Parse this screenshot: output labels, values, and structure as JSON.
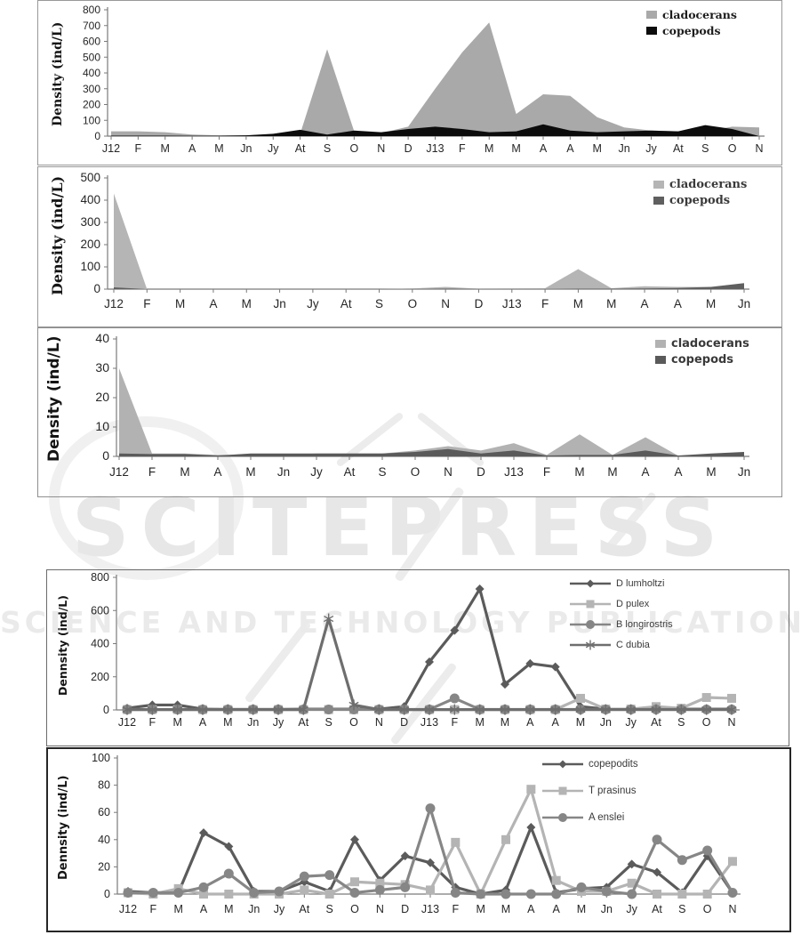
{
  "watermark": {
    "brand": "SCITEPRESS",
    "tagline": "SCIENCE AND TECHNOLOGY PUBLICATIONS"
  },
  "chart_data": [
    {
      "id": "c1",
      "type": "area",
      "title": "",
      "ylabel": "Density (ind/L)",
      "ylim": [
        0,
        800
      ],
      "yticks": [
        0,
        100,
        200,
        300,
        400,
        500,
        600,
        700,
        800
      ],
      "legend_position": "top-right",
      "grid": false,
      "categories": [
        "J12",
        "F",
        "M",
        "A",
        "M",
        "Jn",
        "Jy",
        "At",
        "S",
        "O",
        "N",
        "D",
        "J13",
        "F",
        "M",
        "M",
        "A",
        "A",
        "M",
        "Jn",
        "Jy",
        "At",
        "S",
        "O",
        "N"
      ],
      "series": [
        {
          "name": "cladocerans",
          "color": "#a9a9a9",
          "values": [
            30,
            30,
            25,
            10,
            5,
            5,
            10,
            15,
            550,
            30,
            20,
            60,
            300,
            530,
            720,
            140,
            265,
            255,
            120,
            55,
            35,
            30,
            30,
            60,
            55
          ]
        },
        {
          "name": "copepods",
          "color": "#0c0c0c",
          "values": [
            3,
            3,
            3,
            2,
            2,
            5,
            15,
            40,
            10,
            35,
            25,
            45,
            60,
            45,
            25,
            30,
            75,
            35,
            25,
            30,
            35,
            30,
            70,
            45,
            0
          ]
        }
      ]
    },
    {
      "id": "c2",
      "type": "area",
      "title": "",
      "ylabel": "Density (ind/L)",
      "ylim": [
        0,
        500
      ],
      "yticks": [
        0,
        100,
        200,
        300,
        400,
        500
      ],
      "legend_position": "top-right",
      "grid": false,
      "categories": [
        "J12",
        "F",
        "M",
        "A",
        "M",
        "Jn",
        "Jy",
        "At",
        "S",
        "O",
        "N",
        "D",
        "J13",
        "F",
        "M",
        "M",
        "A",
        "A",
        "M",
        "Jn"
      ],
      "series": [
        {
          "name": "cladocerans",
          "color": "#b5b5b5",
          "values": [
            430,
            0,
            0,
            0,
            0,
            0,
            0,
            0,
            0,
            3,
            10,
            2,
            3,
            4,
            90,
            4,
            13,
            10,
            10,
            12
          ]
        },
        {
          "name": "copepods",
          "color": "#5f5f5f",
          "values": [
            8,
            0,
            0,
            0,
            0,
            0,
            0,
            0,
            0,
            1,
            2,
            1,
            1,
            1,
            2,
            2,
            3,
            5,
            10,
            27
          ]
        }
      ]
    },
    {
      "id": "c3",
      "type": "area",
      "title": "",
      "ylabel": "Density (ind/L)",
      "ylim": [
        0,
        40
      ],
      "yticks": [
        0,
        10,
        20,
        30,
        40
      ],
      "legend_position": "top-right",
      "grid": false,
      "categories": [
        "J12",
        "F",
        "M",
        "A",
        "M",
        "Jn",
        "Jy",
        "At",
        "S",
        "O",
        "N",
        "D",
        "J13",
        "F",
        "M",
        "M",
        "A",
        "A",
        "M",
        "Jn"
      ],
      "series": [
        {
          "name": "cladocerans",
          "color": "#b2b2b2",
          "values": [
            30,
            1,
            1,
            0.5,
            0.5,
            0.5,
            1,
            1,
            1,
            2,
            3.5,
            2,
            4.5,
            0.5,
            7.5,
            0.5,
            6.5,
            0.2,
            0.5,
            0.5
          ]
        },
        {
          "name": "copepods",
          "color": "#5a5a5a",
          "values": [
            1,
            0.8,
            0.8,
            0.3,
            1,
            1,
            1,
            1,
            1,
            1.5,
            2.5,
            1,
            2,
            0.3,
            0.5,
            0.5,
            2,
            0.3,
            1,
            1.5
          ]
        }
      ]
    },
    {
      "id": "c4",
      "type": "line",
      "title": "",
      "ylabel": "Dennsity (ind/L)",
      "ylim": [
        0,
        800
      ],
      "yticks": [
        0,
        200,
        400,
        600,
        800
      ],
      "legend_position": "top-right",
      "grid": false,
      "categories": [
        "J12",
        "F",
        "M",
        "A",
        "M",
        "Jn",
        "Jy",
        "At",
        "S",
        "O",
        "N",
        "D",
        "J13",
        "F",
        "M",
        "M",
        "A",
        "A",
        "M",
        "Jn",
        "Jy",
        "At",
        "S",
        "O",
        "N"
      ],
      "series": [
        {
          "name": "D lumholtzi",
          "italic": true,
          "marker": "diamond",
          "color": "#5b5b5b",
          "values": [
            10,
            30,
            30,
            5,
            3,
            3,
            3,
            5,
            5,
            5,
            5,
            20,
            290,
            480,
            730,
            155,
            280,
            260,
            20,
            5,
            5,
            5,
            5,
            5,
            5
          ]
        },
        {
          "name": "D pulex",
          "italic": true,
          "marker": "square",
          "color": "#b4b4b4",
          "values": [
            2,
            2,
            2,
            2,
            2,
            2,
            2,
            2,
            2,
            2,
            2,
            2,
            2,
            2,
            2,
            2,
            2,
            2,
            70,
            5,
            5,
            20,
            10,
            75,
            70
          ]
        },
        {
          "name": "B longirostris",
          "italic": true,
          "marker": "circle",
          "color": "#868686",
          "values": [
            3,
            3,
            3,
            3,
            3,
            3,
            3,
            3,
            3,
            3,
            3,
            3,
            3,
            70,
            3,
            3,
            3,
            3,
            3,
            3,
            3,
            3,
            3,
            3,
            3
          ]
        },
        {
          "name": "C dubia",
          "italic": true,
          "marker": "asterisk",
          "color": "#6e6e6e",
          "values": [
            2,
            2,
            2,
            2,
            2,
            2,
            2,
            2,
            550,
            30,
            2,
            2,
            2,
            2,
            2,
            2,
            2,
            2,
            2,
            2,
            2,
            2,
            2,
            2,
            2
          ]
        }
      ]
    },
    {
      "id": "c5",
      "type": "line",
      "title": "",
      "ylabel": "Dennsity (ind/L)",
      "ylim": [
        0,
        100
      ],
      "yticks": [
        0,
        20,
        40,
        60,
        80,
        100
      ],
      "legend_position": "top-right",
      "grid": false,
      "categories": [
        "J12",
        "F",
        "M",
        "A",
        "M",
        "Jn",
        "Jy",
        "At",
        "S",
        "O",
        "N",
        "D",
        "J13",
        "F",
        "M",
        "M",
        "A",
        "A",
        "M",
        "Jn",
        "Jy",
        "At",
        "S",
        "O",
        "N"
      ],
      "series": [
        {
          "name": "copepodits",
          "italic": false,
          "marker": "diamond",
          "color": "#5b5b5b",
          "values": [
            2,
            1,
            1,
            45,
            35,
            2,
            2,
            9,
            2,
            40,
            10,
            28,
            23,
            5,
            0,
            3,
            49,
            1,
            4,
            5,
            22,
            16,
            1,
            28,
            1
          ]
        },
        {
          "name": "T prasinus",
          "italic": true,
          "marker": "square",
          "color": "#b4b4b4",
          "values": [
            1,
            0,
            4,
            0,
            0,
            0,
            0,
            3,
            0,
            9,
            8,
            7,
            3,
            38,
            0,
            40,
            77,
            10,
            2,
            2,
            8,
            0,
            0,
            0,
            24
          ]
        },
        {
          "name": "A enslei",
          "italic": true,
          "marker": "circle",
          "color": "#868686",
          "values": [
            1,
            1,
            1,
            5,
            15,
            1,
            2,
            13,
            14,
            1,
            3,
            5,
            63,
            1,
            0,
            0,
            0,
            0,
            5,
            2,
            0,
            40,
            25,
            32,
            1
          ]
        }
      ]
    }
  ]
}
